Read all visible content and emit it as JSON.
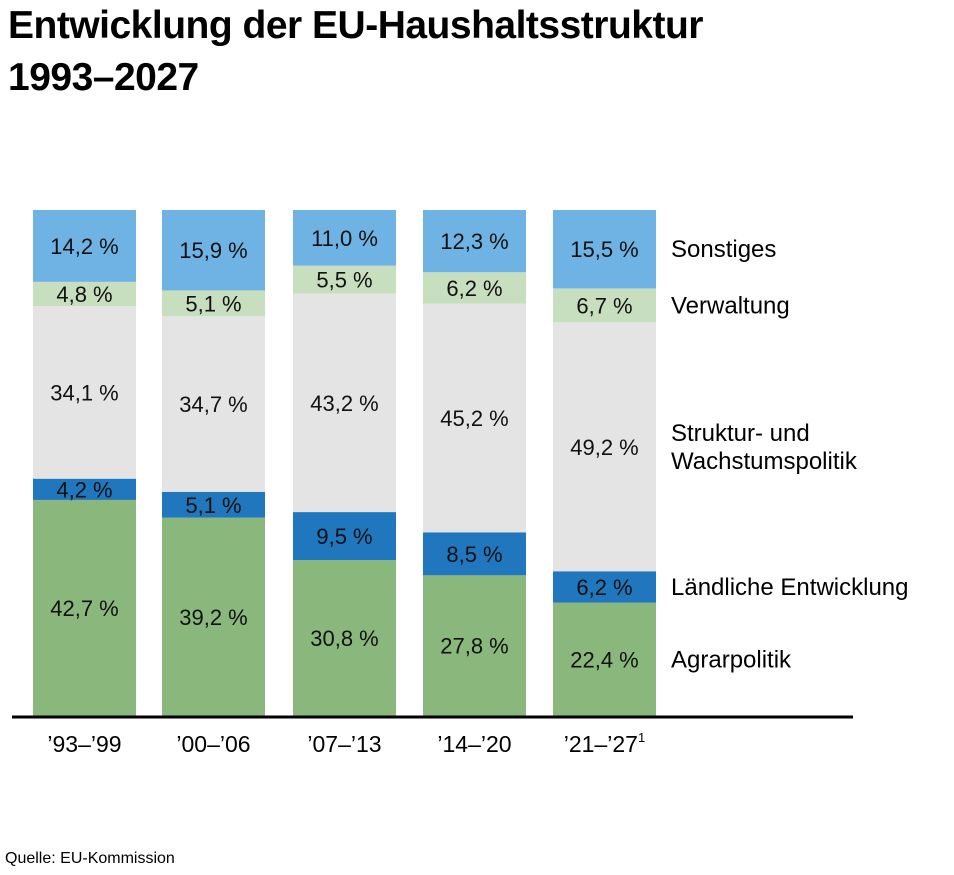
{
  "title_line1": "Entwicklung der EU-Haushaltsstruktur",
  "title_line2": "1993–2027",
  "source": "Quelle: EU-Kommission",
  "colors": {
    "Agrarpolitik": "#8ab77b",
    "Ländliche Entwicklung": "#2077bd",
    "Struktur- und Wachstumspolitik": "#e4e4e4",
    "Verwaltung": "#c7dfbf",
    "Sonstiges": "#6fb3e5"
  },
  "chart_data": {
    "type": "bar",
    "stacked": true,
    "percent_stacked": true,
    "title": "Entwicklung der EU-Haushaltsstruktur 1993–2027",
    "categories": [
      "’93–’99",
      "’00–’06",
      "’07–’13",
      "’14–’20",
      "’21–’27"
    ],
    "category_footnotes": [
      "",
      "",
      "",
      "",
      "1"
    ],
    "series": [
      {
        "name": "Agrarpolitik",
        "values": [
          42.7,
          39.2,
          30.8,
          27.8,
          22.4
        ],
        "labels": [
          "42,7 %",
          "39,2 %",
          "30,8 %",
          "27,8 %",
          "22,4 %"
        ]
      },
      {
        "name": "Ländliche Entwicklung",
        "values": [
          4.2,
          5.1,
          9.5,
          8.5,
          6.2
        ],
        "labels": [
          "4,2 %",
          "5,1 %",
          "9,5 %",
          "8,5 %",
          "6,2 %"
        ]
      },
      {
        "name": "Struktur- und Wachstumspolitik",
        "legend_lines": [
          "Struktur- und",
          "Wachstumspolitik"
        ],
        "values": [
          34.1,
          34.7,
          43.2,
          45.2,
          49.2
        ],
        "labels": [
          "34,1 %",
          "34,7 %",
          "43,2 %",
          "45,2 %",
          "49,2 %"
        ]
      },
      {
        "name": "Verwaltung",
        "values": [
          4.8,
          5.1,
          5.5,
          6.2,
          6.7
        ],
        "labels": [
          "4,8 %",
          "5,1 %",
          "5,5 %",
          "6,2 %",
          "6,7 %"
        ]
      },
      {
        "name": "Sonstiges",
        "values": [
          14.2,
          15.9,
          11.0,
          12.3,
          15.5
        ],
        "labels": [
          "14,2 %",
          "15,9 %",
          "11,0 %",
          "12,3 %",
          "15,5 %"
        ]
      }
    ],
    "legend_placement": "right",
    "grid": false
  }
}
